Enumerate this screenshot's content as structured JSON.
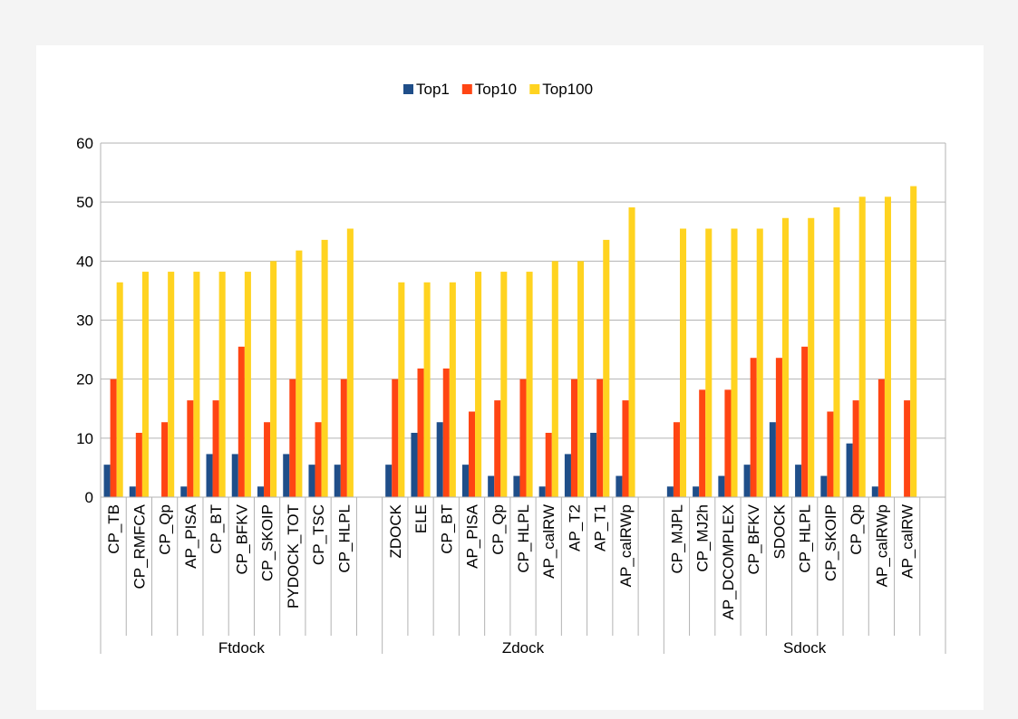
{
  "chart_data": {
    "type": "bar",
    "legend_position": "top",
    "grid": true,
    "ylim": [
      0,
      60
    ],
    "yticks": [
      0,
      10,
      20,
      30,
      40,
      50,
      60
    ],
    "series_colors": [
      "#1f4e89",
      "#ff4513",
      "#ffd320"
    ],
    "groups": [
      {
        "name": "Ftdock",
        "categories": [
          "CP_TB",
          "CP_RMFCA",
          "CP_Qp",
          "AP_PISA",
          "CP_BT",
          "CP_BFKV",
          "CP_SKOIP",
          "PYDOCK_TOT",
          "CP_TSC",
          "CP_HLPL"
        ]
      },
      {
        "name": "Zdock",
        "categories": [
          "ZDOCK",
          "ELE",
          "CP_BT",
          "AP_PISA",
          "CP_Qp",
          "CP_HLPL",
          "AP_calRW",
          "AP_T2",
          "AP_T1",
          "AP_calRWp"
        ]
      },
      {
        "name": "Sdock",
        "categories": [
          "CP_MJPL",
          "CP_MJ2h",
          "AP_DCOMPLEX",
          "CP_BFKV",
          "SDOCK",
          "CP_HLPL",
          "CP_SKOIP",
          "CP_Qp",
          "AP_calRWp",
          "AP_calRW"
        ]
      }
    ],
    "series": [
      {
        "name": "Top1",
        "values": [
          5.5,
          1.8,
          0,
          1.8,
          7.3,
          7.3,
          1.8,
          7.3,
          5.5,
          5.5,
          5.5,
          10.9,
          12.7,
          5.5,
          3.6,
          3.6,
          1.8,
          7.3,
          10.9,
          3.6,
          1.8,
          1.8,
          3.6,
          5.5,
          12.7,
          5.5,
          3.6,
          9.1,
          1.8,
          0
        ]
      },
      {
        "name": "Top10",
        "values": [
          20.0,
          10.9,
          12.7,
          16.4,
          16.4,
          25.5,
          12.7,
          20.0,
          12.7,
          20.0,
          20.0,
          21.8,
          21.8,
          14.5,
          16.4,
          20.0,
          10.9,
          20.0,
          20.0,
          16.4,
          12.7,
          18.2,
          18.2,
          23.6,
          23.6,
          25.5,
          14.5,
          16.4,
          20.0,
          16.4
        ]
      },
      {
        "name": "Top100",
        "values": [
          36.4,
          38.2,
          38.2,
          38.2,
          38.2,
          38.2,
          40.0,
          41.8,
          43.6,
          45.5,
          36.4,
          36.4,
          36.4,
          38.2,
          38.2,
          38.2,
          40.0,
          40.0,
          43.6,
          49.1,
          45.5,
          45.5,
          45.5,
          45.5,
          47.3,
          47.3,
          49.1,
          50.9,
          50.9,
          52.7
        ]
      }
    ]
  }
}
